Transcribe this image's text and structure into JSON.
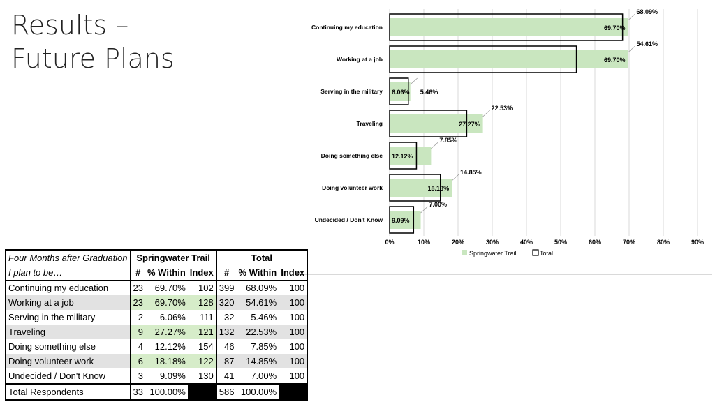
{
  "slide": {
    "title_line1": "Results –",
    "title_line2": "Future Plans"
  },
  "chart_data": {
    "type": "bar",
    "orientation": "horizontal",
    "categories": [
      "Continuing my education",
      "Working at a job",
      "Serving in the military",
      "Traveling",
      "Doing something else",
      "Doing volunteer work",
      "Undecided / Don't Know"
    ],
    "series": [
      {
        "name": "Springwater Trail",
        "values": [
          69.7,
          69.7,
          6.06,
          27.27,
          12.12,
          18.18,
          9.09
        ],
        "labels": [
          "69.70%",
          "69.70%",
          "6.06%",
          "27.27%",
          "12.12%",
          "18.18%",
          "9.09%"
        ],
        "color": "#c9e6bf"
      },
      {
        "name": "Total",
        "values": [
          68.09,
          54.61,
          5.46,
          22.53,
          7.85,
          14.85,
          7.0
        ],
        "labels": [
          "68.09%",
          "54.61%",
          "5.46%",
          "22.53%",
          "7.85%",
          "14.85%",
          "7.00%"
        ],
        "color": "#000000"
      }
    ],
    "xlim": [
      0,
      90
    ],
    "xticks": [
      "0%",
      "10%",
      "20%",
      "30%",
      "40%",
      "50%",
      "60%",
      "70%",
      "80%",
      "90%"
    ],
    "grid": true,
    "legend": "bottom-center"
  },
  "table": {
    "header1": {
      "label": "Four Months after Graduation",
      "group1": "Springwater Trail",
      "group2": "Total"
    },
    "header2": {
      "label": "I plan to be…",
      "count": "#",
      "pct": "% Within",
      "index": "Index"
    },
    "rows": [
      {
        "label": "Continuing my education",
        "sw_n": "23",
        "sw_pct": "69.70%",
        "sw_idx": "102",
        "t_n": "399",
        "t_pct": "68.09%",
        "t_idx": "100"
      },
      {
        "label": "Working at a job",
        "sw_n": "23",
        "sw_pct": "69.70%",
        "sw_idx": "128",
        "t_n": "320",
        "t_pct": "54.61%",
        "t_idx": "100"
      },
      {
        "label": "Serving in the military",
        "sw_n": "2",
        "sw_pct": "6.06%",
        "sw_idx": "111",
        "t_n": "32",
        "t_pct": "5.46%",
        "t_idx": "100"
      },
      {
        "label": "Traveling",
        "sw_n": "9",
        "sw_pct": "27.27%",
        "sw_idx": "121",
        "t_n": "132",
        "t_pct": "22.53%",
        "t_idx": "100"
      },
      {
        "label": "Doing something else",
        "sw_n": "4",
        "sw_pct": "12.12%",
        "sw_idx": "154",
        "t_n": "46",
        "t_pct": "7.85%",
        "t_idx": "100"
      },
      {
        "label": "Doing volunteer work",
        "sw_n": "6",
        "sw_pct": "18.18%",
        "sw_idx": "122",
        "t_n": "87",
        "t_pct": "14.85%",
        "t_idx": "100"
      },
      {
        "label": "Undecided / Don't Know",
        "sw_n": "3",
        "sw_pct": "9.09%",
        "sw_idx": "130",
        "t_n": "41",
        "t_pct": "7.00%",
        "t_idx": "100"
      }
    ],
    "total": {
      "label": "Total Respondents",
      "sw_n": "33",
      "sw_pct": "100.00%",
      "t_n": "586",
      "t_pct": "100.00%"
    }
  }
}
